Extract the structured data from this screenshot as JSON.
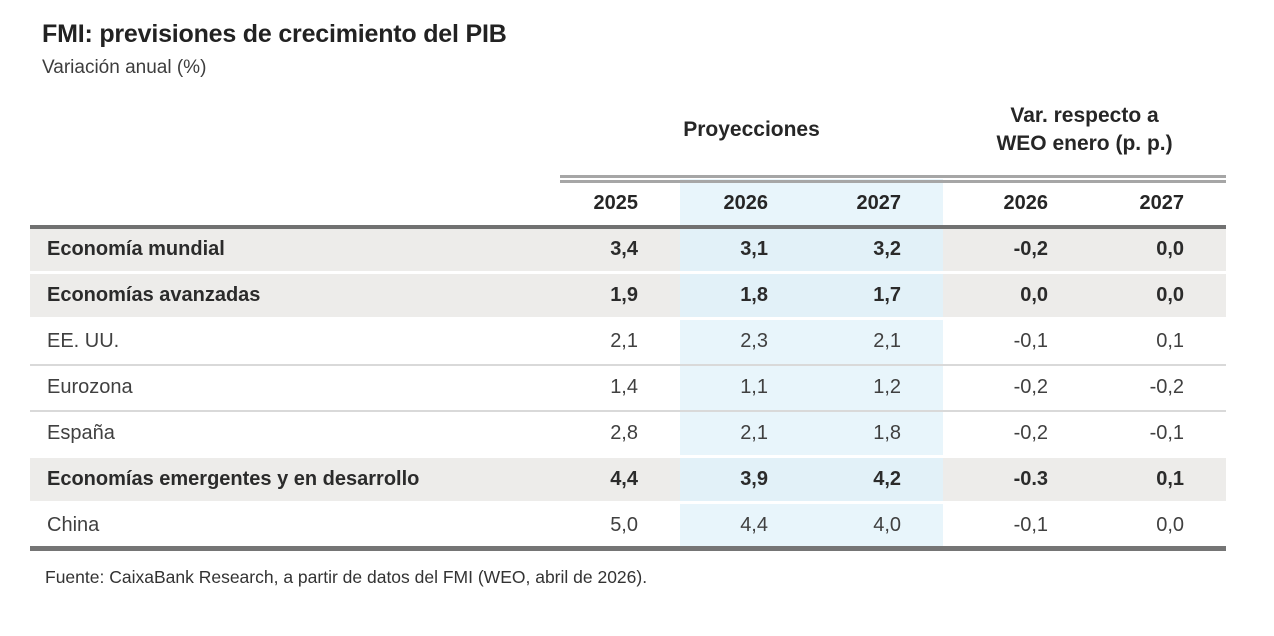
{
  "title": "FMI: previsiones de crecimiento del PIB",
  "subtitle": "Variación anual (%)",
  "table": {
    "group_headers": {
      "projections": "Proyecciones",
      "variation_line1": "Var. respecto a",
      "variation_line2": "WEO enero (p. p.)"
    },
    "year_headers": [
      "2025",
      "2026",
      "2027",
      "2026",
      "2027"
    ],
    "rows": [
      {
        "label": "Economía mundial",
        "bold": true,
        "values": [
          "3,4",
          "3,1",
          "3,2",
          "-0,2",
          "0,0"
        ]
      },
      {
        "label": "Economías avanzadas",
        "bold": true,
        "values": [
          "1,9",
          "1,8",
          "1,7",
          "0,0",
          "0,0"
        ]
      },
      {
        "label": "EE. UU.",
        "bold": false,
        "values": [
          "2,1",
          "2,3",
          "2,1",
          "-0,1",
          "0,1"
        ]
      },
      {
        "label": "Eurozona",
        "bold": false,
        "values": [
          "1,4",
          "1,1",
          "1,2",
          "-0,2",
          "-0,2"
        ]
      },
      {
        "label": "España",
        "bold": false,
        "values": [
          "2,8",
          "2,1",
          "1,8",
          "-0,2",
          "-0,1"
        ]
      },
      {
        "label": "Economías emergentes y en desarrollo",
        "bold": true,
        "values": [
          "4,4",
          "3,9",
          "4,2",
          "-0.3",
          "0,1"
        ]
      },
      {
        "label": "China",
        "bold": false,
        "values": [
          "5,0",
          "4,4",
          "4,0",
          "-0,1",
          "0,0"
        ]
      }
    ]
  },
  "footer": "Fuente: CaixaBank Research, a partir de datos del FMI (WEO, abril de 2026).",
  "colors": {
    "highlight_row_bg": "#edecea",
    "projection_col_bg": "#e8f5fb",
    "projection_col_bg_on_gray": "#e2f1f8",
    "row_separator": "#d9d9d9",
    "heavy_rule": "#717171",
    "double_rule": "#a6a6a6",
    "text_dark": "#262626"
  },
  "chart_data": {
    "type": "table",
    "title": "FMI: previsiones de crecimiento del PIB",
    "subtitle": "Variación anual (%)",
    "column_groups": [
      {
        "label": "Proyecciones",
        "columns": [
          "2025",
          "2026",
          "2027"
        ]
      },
      {
        "label": "Var. respecto a WEO enero (p. p.)",
        "columns": [
          "2026",
          "2027"
        ]
      }
    ],
    "columns": [
      "2025",
      "2026",
      "2027",
      "var_2026",
      "var_2027"
    ],
    "rows": [
      {
        "label": "Economía mundial",
        "values": [
          3.4,
          3.1,
          3.2,
          -0.2,
          0.0
        ]
      },
      {
        "label": "Economías avanzadas",
        "values": [
          1.9,
          1.8,
          1.7,
          0.0,
          0.0
        ]
      },
      {
        "label": "EE. UU.",
        "values": [
          2.1,
          2.3,
          2.1,
          -0.1,
          0.1
        ]
      },
      {
        "label": "Eurozona",
        "values": [
          1.4,
          1.1,
          1.2,
          -0.2,
          -0.2
        ]
      },
      {
        "label": "España",
        "values": [
          2.8,
          2.1,
          1.8,
          -0.2,
          -0.1
        ]
      },
      {
        "label": "Economías emergentes y en desarrollo",
        "values": [
          4.4,
          3.9,
          4.2,
          -0.3,
          0.1
        ]
      },
      {
        "label": "China",
        "values": [
          5.0,
          4.4,
          4.0,
          -0.1,
          0.0
        ]
      }
    ],
    "source": "Fuente: CaixaBank Research, a partir de datos del FMI (WEO, abril de 2026)."
  }
}
